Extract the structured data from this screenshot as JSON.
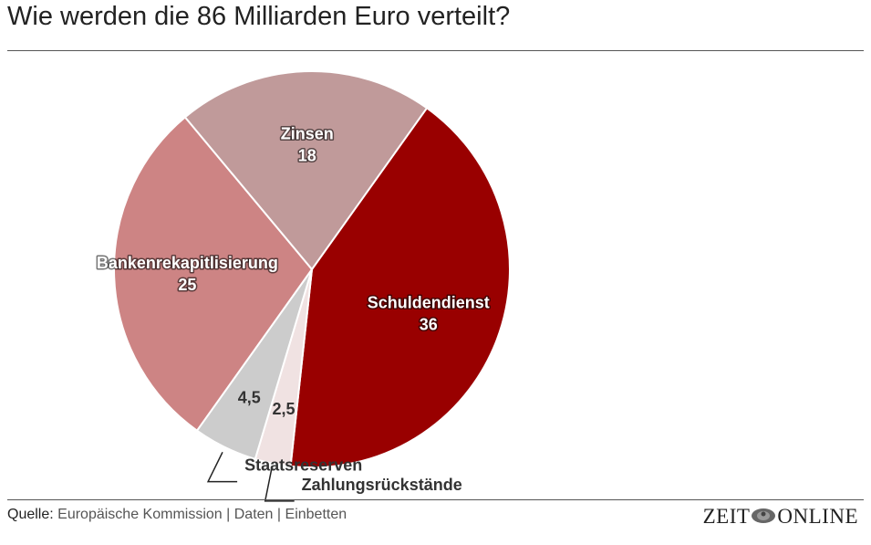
{
  "title": "Wie werden die 86 Milliarden Euro verteilt?",
  "chart_data": {
    "type": "pie",
    "title": "Wie werden die 86 Milliarden Euro verteilt?",
    "total": 86,
    "slices": [
      {
        "label": "Schuldendienst",
        "value": 36,
        "display": "36",
        "color": "#990000",
        "label_style": "inside"
      },
      {
        "label": "Zahlungsrückstände",
        "value": 2.5,
        "display": "2,5",
        "color": "#f0e2e2",
        "label_style": "outside"
      },
      {
        "label": "Staatsreserven",
        "value": 4.5,
        "display": "4,5",
        "color": "#cccccc",
        "label_style": "outside"
      },
      {
        "label": "Bankenrekapitlisierung",
        "value": 25,
        "display": "25",
        "color": "#cd8484",
        "label_style": "inside"
      },
      {
        "label": "Zinsen",
        "value": 18,
        "display": "18",
        "color": "#c09a9a",
        "label_style": "inside"
      }
    ]
  },
  "footer": {
    "source_label": "Quelle:",
    "source_name": "Europäische Kommission",
    "separator": "|",
    "link_data": "Daten",
    "link_embed": "Einbetten",
    "logo_left": "ZEIT",
    "logo_right": "ONLINE"
  }
}
